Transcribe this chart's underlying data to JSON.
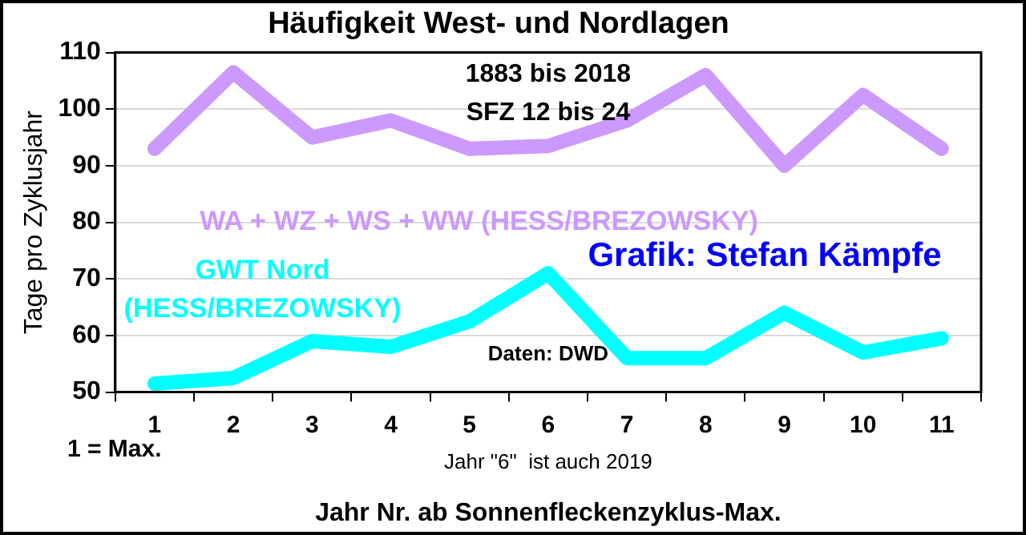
{
  "chart_data": {
    "type": "line",
    "title": "Häufigkeit West- und Nordlagen",
    "xlabel": "Jahr Nr. ab Sonnenfleckenzyklus-Max.",
    "ylabel": "Tage pro Zyklusjahr",
    "categories": [
      "1",
      "2",
      "3",
      "4",
      "5",
      "6",
      "7",
      "8",
      "9",
      "10",
      "11"
    ],
    "series": [
      {
        "name": "WA + WZ + WS + WW (HESS/BREZOWSKY)",
        "color": "#cc99ff",
        "values": [
          93,
          106.5,
          95,
          98,
          93,
          93.5,
          98,
          106,
          90,
          102.5,
          93
        ]
      },
      {
        "name": "GWT Nord (HESS/BREZOWSKY)",
        "color": "#00ffff",
        "values": [
          51.5,
          52.5,
          59,
          58,
          62.5,
          71,
          56,
          56,
          64,
          57,
          59.5
        ]
      }
    ],
    "ylim": [
      50,
      110
    ],
    "yticks": [
      50,
      60,
      70,
      80,
      90,
      100,
      110
    ],
    "grid": "y",
    "legend": false,
    "marker": "none",
    "line_style": "solid",
    "annotations": [
      "1883 bis 2018",
      "SFZ 12 bis 24",
      "Grafik: Stefan Kämpfe",
      "Daten: DWD",
      "1 = Max.",
      "Jahr \"6\"  ist auch 2019"
    ]
  }
}
